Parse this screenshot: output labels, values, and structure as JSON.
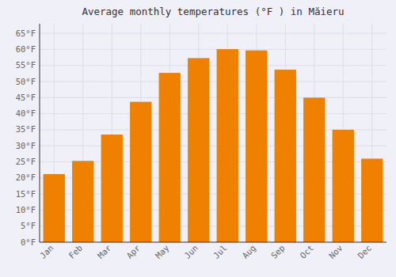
{
  "chart_data": {
    "type": "bar",
    "title": "Average monthly temperatures (°F ) in Măieru",
    "categories": [
      "Jan",
      "Feb",
      "Mar",
      "Apr",
      "May",
      "Jun",
      "Jul",
      "Aug",
      "Sep",
      "Oct",
      "Nov",
      "Dec"
    ],
    "values": [
      21.2,
      25.3,
      33.5,
      43.7,
      52.7,
      57.3,
      60.1,
      59.7,
      53.7,
      45.0,
      35.0,
      26.0
    ],
    "color": "#F08000",
    "ylim": [
      0,
      68
    ],
    "yticks": [
      {
        "value": 0,
        "label": "0°F"
      },
      {
        "value": 5,
        "label": "5°F"
      },
      {
        "value": 10,
        "label": "10°F"
      },
      {
        "value": 15,
        "label": "15°F"
      },
      {
        "value": 20,
        "label": "20°F"
      },
      {
        "value": 25,
        "label": "25°F"
      },
      {
        "value": 30,
        "label": "30°F"
      },
      {
        "value": 35,
        "label": "35°F"
      },
      {
        "value": 40,
        "label": "40°F"
      },
      {
        "value": 45,
        "label": "45°F"
      },
      {
        "value": 50,
        "label": "50°F"
      },
      {
        "value": 55,
        "label": "55°F"
      },
      {
        "value": 60,
        "label": "60°F"
      },
      {
        "value": 65,
        "label": "65°F"
      }
    ],
    "grid": true
  }
}
